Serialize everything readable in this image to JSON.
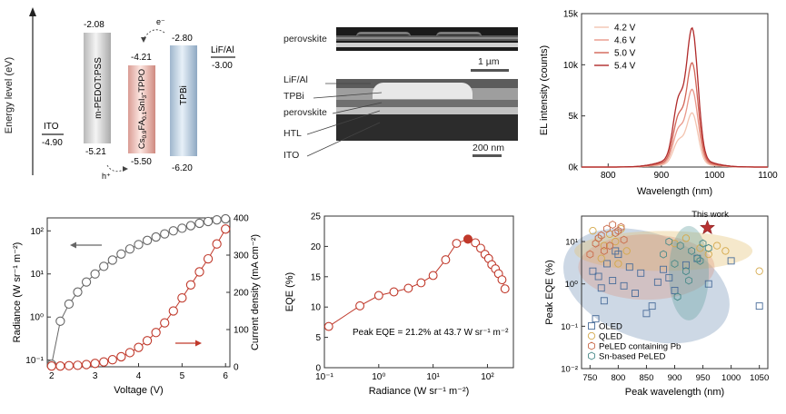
{
  "energy_diagram": {
    "y_axis_label": "Energy level (eV)",
    "layers": [
      {
        "name": "ITO",
        "top": "",
        "bottom": "-4.90"
      },
      {
        "name": "m-PEDOT:PSS",
        "top": "-2.08",
        "bottom": "-5.21"
      },
      {
        "name": "Cs0.9FA0.1SnI3-TPPO",
        "top": "-4.21",
        "bottom": "-5.50"
      },
      {
        "name": "TPBi",
        "top": "-2.80",
        "bottom": "-6.20"
      },
      {
        "name": "LiF/Al",
        "top": "",
        "bottom": "-3.00"
      }
    ],
    "electron_label": "e⁻",
    "hole_label": "h⁺"
  },
  "sem": {
    "top_label": "perovskite",
    "top_scale": "1 µm",
    "bottom_labels": [
      "LiF/Al",
      "TPBi",
      "perovskite",
      "HTL",
      "ITO"
    ],
    "bottom_scale": "200 nm"
  },
  "chart_data": [
    {
      "type": "line",
      "title": "",
      "xlabel": "Wavelength (nm)",
      "ylabel": "EL intensity (counts)",
      "xlim": [
        750,
        1100
      ],
      "ylim": [
        0,
        15000
      ],
      "xticks": [
        "800",
        "900",
        "1000",
        "1100"
      ],
      "yticks": [
        "0k",
        "5k",
        "10k",
        "15k"
      ],
      "legend_position": "top-left",
      "peak_wavelength": 958,
      "series": [
        {
          "name": "4.2 V",
          "peak": 5300,
          "color": "#f3c4b0"
        },
        {
          "name": "4.6 V",
          "peak": 7600,
          "color": "#e9988a"
        },
        {
          "name": "5.0 V",
          "peak": 10200,
          "color": "#d26456"
        },
        {
          "name": "5.4 V",
          "peak": 13600,
          "color": "#b02a2a"
        }
      ]
    },
    {
      "type": "scatter",
      "title": "",
      "xlabel": "Voltage (V)",
      "ylabel": "Radiance (W sr⁻¹ m⁻²)",
      "y2label": "Current density (mA cm⁻²)",
      "xlim": [
        1.9,
        6.1
      ],
      "ylim_log": [
        0.07,
        200
      ],
      "y2lim": [
        0,
        400
      ],
      "xticks": [
        "2",
        "3",
        "4",
        "5",
        "6"
      ],
      "yticks": [
        "10⁻¹",
        "10⁰",
        "10¹",
        "10²"
      ],
      "y2ticks": [
        "0",
        "100",
        "200",
        "300",
        "400"
      ],
      "series": [
        {
          "name": "Radiance",
          "color": "#666666",
          "x": [
            2.0,
            2.2,
            2.4,
            2.6,
            2.8,
            3.0,
            3.2,
            3.4,
            3.6,
            3.8,
            4.0,
            4.2,
            4.4,
            4.6,
            4.8,
            5.0,
            5.2,
            5.4,
            5.6,
            5.8,
            6.0
          ],
          "y": [
            0.08,
            0.8,
            2.0,
            3.8,
            6.5,
            10,
            15,
            21,
            29,
            38,
            48,
            60,
            72,
            85,
            100,
            115,
            132,
            150,
            165,
            180,
            190
          ]
        },
        {
          "name": "Current density",
          "color": "#c0392b",
          "x": [
            2.0,
            2.2,
            2.4,
            2.6,
            2.8,
            3.0,
            3.2,
            3.4,
            3.6,
            3.8,
            4.0,
            4.2,
            4.4,
            4.6,
            4.8,
            5.0,
            5.2,
            5.4,
            5.6,
            5.8,
            6.0
          ],
          "y": [
            2,
            2,
            3,
            4,
            6,
            9,
            13,
            19,
            27,
            38,
            52,
            70,
            92,
            118,
            150,
            185,
            220,
            255,
            290,
            330,
            370
          ]
        }
      ]
    },
    {
      "type": "line",
      "title": "",
      "xlabel": "Radiance (W sr⁻¹ m⁻²)",
      "ylabel": "EQE (%)",
      "xlim_log": [
        0.1,
        300
      ],
      "ylim": [
        0,
        25
      ],
      "xticks": [
        "10⁻¹",
        "10⁰",
        "10¹",
        "10²"
      ],
      "yticks": [
        "0",
        "5",
        "10",
        "15",
        "20",
        "25"
      ],
      "annotation": "Peak EQE = 21.2% at 43.7 W sr⁻¹ m⁻²",
      "peak": {
        "x": 43.7,
        "y": 21.2
      },
      "series": [
        {
          "name": "EQE",
          "color": "#c0392b",
          "x": [
            0.12,
            0.45,
            1.0,
            1.9,
            3.5,
            6.0,
            10,
            17,
            27,
            43.7,
            60,
            75,
            90,
            105,
            120,
            140,
            160,
            185,
            210
          ],
          "y": [
            6.8,
            10.2,
            11.9,
            12.5,
            13.1,
            14.0,
            15.2,
            17.8,
            20.5,
            21.2,
            20.6,
            19.7,
            18.7,
            18.0,
            17.0,
            16.3,
            15.5,
            14.5,
            13.0
          ]
        }
      ]
    },
    {
      "type": "scatter",
      "title": "",
      "xlabel": "Peak wavelength (nm)",
      "ylabel": "Peak EQE (%)",
      "xlim": [
        735,
        1065
      ],
      "ylim_log": [
        0.01,
        40
      ],
      "xticks": [
        "750",
        "800",
        "850",
        "900",
        "950",
        "1000",
        "1050"
      ],
      "yticks": [
        "10⁻²",
        "10⁻¹",
        "10⁰",
        "10¹"
      ],
      "annotation": "This work",
      "this_work": {
        "x": 958,
        "y": 21.2
      },
      "legend_position": "bottom-left",
      "series": [
        {
          "name": "OLED",
          "marker": "square",
          "color": "#4a6d9a",
          "x": [
            755,
            765,
            770,
            780,
            790,
            800,
            810,
            820,
            830,
            840,
            850,
            860,
            870,
            880,
            890,
            900,
            920,
            940,
            960,
            1000,
            1050,
            760,
            775,
            795
          ],
          "y": [
            2.0,
            1.5,
            0.8,
            3.0,
            1.2,
            5.0,
            0.9,
            2.5,
            0.6,
            1.8,
            0.2,
            0.3,
            1.1,
            2.2,
            1.4,
            0.7,
            2.8,
            4.0,
            1.0,
            3.5,
            0.3,
            0.15,
            0.4,
            6.0
          ]
        },
        {
          "name": "QLED",
          "marker": "circle",
          "color": "#d4a84a",
          "x": [
            755,
            765,
            775,
            785,
            795,
            805,
            815,
            900,
            920,
            945,
            960,
            975,
            990,
            1050,
            770,
            800
          ],
          "y": [
            18,
            12,
            8,
            15,
            10,
            20,
            6,
            9,
            12,
            7,
            5,
            8,
            6,
            2,
            4,
            3
          ]
        },
        {
          "name": "PeLED containing Pb",
          "marker": "hexagon",
          "color": "#c96b4a",
          "x": [
            750,
            760,
            770,
            780,
            790,
            800,
            810,
            805,
            795,
            785,
            775,
            765
          ],
          "y": [
            5,
            9,
            14,
            20,
            25,
            18,
            11,
            22,
            16,
            8,
            6,
            12
          ]
        },
        {
          "name": "Sn-based PeLED",
          "marker": "hexagon",
          "color": "#4a8a8a",
          "x": [
            880,
            890,
            900,
            910,
            920,
            930,
            940,
            950,
            960,
            905,
            925,
            945
          ],
          "y": [
            5,
            10,
            3,
            8,
            2,
            6,
            4,
            9,
            7,
            0.5,
            1.2,
            3.5
          ]
        }
      ]
    }
  ]
}
